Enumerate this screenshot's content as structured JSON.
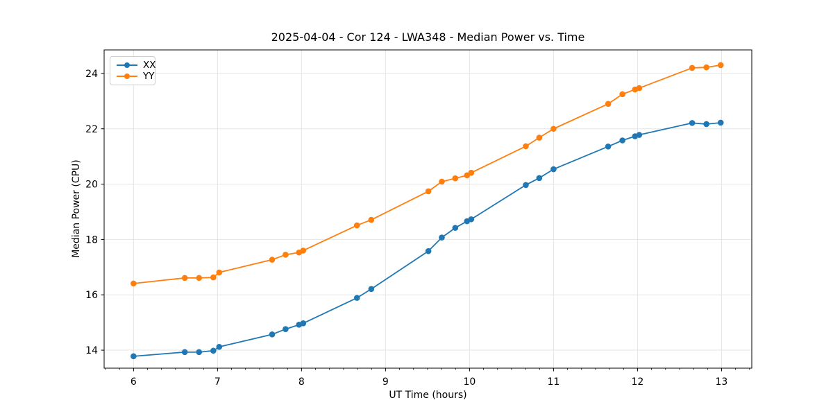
{
  "figure": {
    "title": "2025-04-04 - Cor 124 - LWA348 - Median Power vs. Time",
    "xlabel": "UT Time (hours)",
    "ylabel": "Median Power (CPU)"
  },
  "legend": {
    "items": [
      {
        "label": "XX",
        "color": "#1f77b4"
      },
      {
        "label": "YY",
        "color": "#ff7f0e"
      }
    ]
  },
  "colors": {
    "series_xx": "#1f77b4",
    "series_yy": "#ff7f0e",
    "grid": "#e5e5e5",
    "spine": "#000000",
    "background": "#ffffff"
  },
  "chart_data": {
    "type": "line",
    "title": "2025-04-04 - Cor 124 - LWA348 - Median Power vs. Time",
    "xlabel": "UT Time (hours)",
    "ylabel": "Median Power (CPU)",
    "grid": true,
    "legend_position": "upper left",
    "marker": "circle",
    "xlim": [
      5.65,
      13.36
    ],
    "ylim": [
      13.35,
      24.85
    ],
    "xticks": [
      6,
      7,
      8,
      9,
      10,
      11,
      12,
      13
    ],
    "yticks": [
      14,
      16,
      18,
      20,
      22,
      24
    ],
    "x_minor_tick_step_hours": 0.16667,
    "x": [
      6.0,
      6.61,
      6.78,
      6.95,
      7.02,
      7.65,
      7.81,
      7.97,
      8.02,
      8.66,
      8.83,
      9.51,
      9.67,
      9.83,
      9.97,
      10.02,
      10.67,
      10.83,
      11.0,
      11.65,
      11.82,
      11.97,
      12.02,
      12.65,
      12.82,
      12.99
    ],
    "series": [
      {
        "name": "XX",
        "color": "#1f77b4",
        "values": [
          13.78,
          13.93,
          13.93,
          13.98,
          14.12,
          14.57,
          14.76,
          14.92,
          14.97,
          15.89,
          16.21,
          17.58,
          18.07,
          18.42,
          18.66,
          18.73,
          19.97,
          20.22,
          20.54,
          21.36,
          21.58,
          21.73,
          21.78,
          22.21,
          22.17,
          22.22
        ]
      },
      {
        "name": "YY",
        "color": "#ff7f0e",
        "values": [
          16.41,
          16.61,
          16.61,
          16.63,
          16.81,
          17.27,
          17.45,
          17.53,
          17.6,
          18.51,
          18.71,
          19.74,
          20.09,
          20.21,
          20.32,
          20.41,
          21.37,
          21.68,
          22.0,
          22.9,
          23.25,
          23.42,
          23.47,
          24.2,
          24.22,
          24.3
        ]
      }
    ]
  }
}
